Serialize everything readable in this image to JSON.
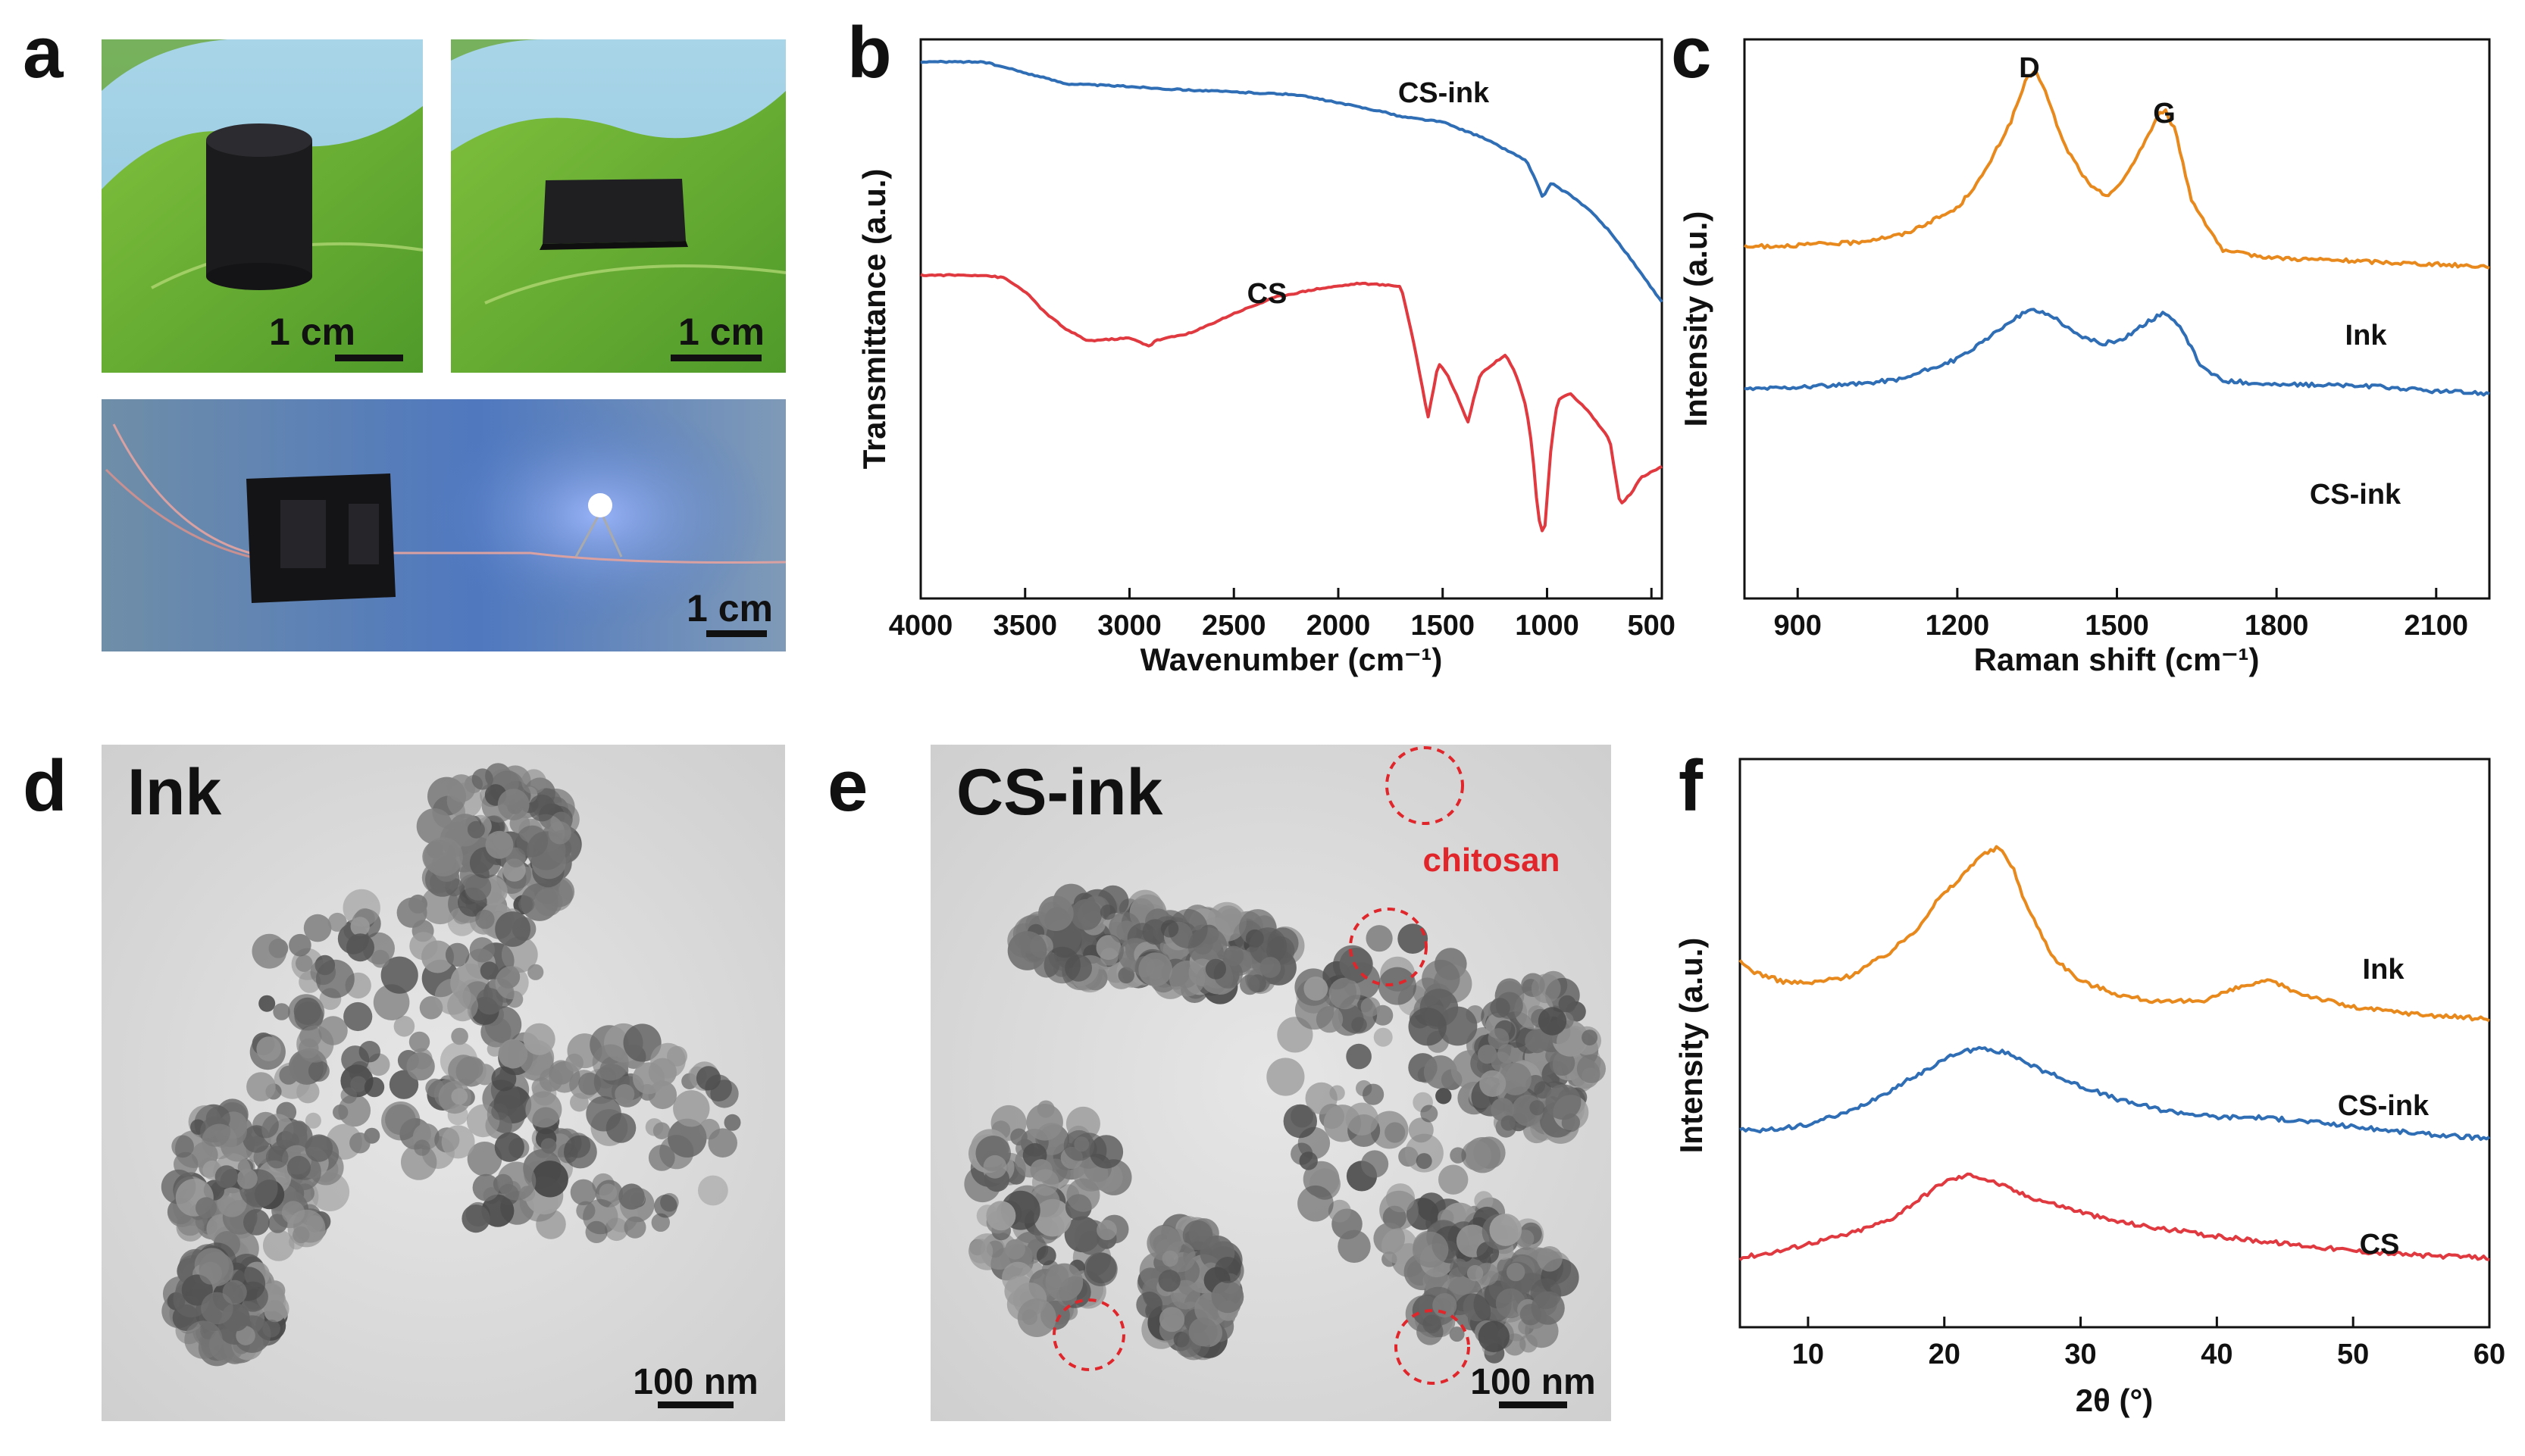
{
  "panels": {
    "a": {
      "label": "a",
      "photos": [
        {
          "name": "cylinder-photo",
          "scale_text": "1 cm"
        },
        {
          "name": "film-photo",
          "scale_text": "1 cm"
        },
        {
          "name": "led-circuit-photo",
          "scale_text": "1 cm"
        }
      ]
    },
    "d": {
      "label": "d",
      "title": "Ink",
      "scale_text": "100 nm"
    },
    "e": {
      "label": "e",
      "title": "CS-ink",
      "scale_text": "100 nm",
      "annotation": "chitosan"
    }
  },
  "colors": {
    "orange": "#e8891d",
    "blue": "#2f6db5",
    "red": "#e0393f"
  },
  "chart_data": [
    {
      "panel": "b",
      "label": "b",
      "type": "line",
      "title": "",
      "xlabel": "Wavenumber (cm⁻¹)",
      "ylabel": "Transmittance (a.u.)",
      "xlim": [
        4000,
        450
      ],
      "x_inverted": true,
      "ylim": [
        0,
        100
      ],
      "xticks": [
        4000,
        3500,
        3000,
        2500,
        2000,
        1500,
        1000,
        500
      ],
      "xtick_labels": [
        "4000",
        "3500",
        "3000",
        "2500",
        "2000",
        "1500",
        "1000",
        "500"
      ],
      "series": [
        {
          "name": "CS-ink",
          "color": "#2f6db5",
          "x": [
            4000,
            3700,
            3500,
            3300,
            3000,
            2800,
            2500,
            2200,
            2000,
            1800,
            1700,
            1500,
            1300,
            1200,
            1100,
            1050,
            1020,
            980,
            950,
            900,
            800,
            700,
            600,
            450
          ],
          "y": [
            97,
            97,
            95,
            93,
            92.5,
            92,
            91.5,
            91,
            89.5,
            88,
            87,
            86,
            83,
            81,
            79,
            75,
            72,
            75,
            74,
            73,
            70,
            66,
            61,
            53
          ]
        },
        {
          "name": "CS",
          "color": "#e0393f",
          "x": [
            4000,
            3700,
            3600,
            3500,
            3400,
            3300,
            3200,
            3000,
            2900,
            2880,
            2700,
            2500,
            2300,
            2100,
            1900,
            1700,
            1640,
            1600,
            1570,
            1520,
            1480,
            1420,
            1380,
            1320,
            1250,
            1200,
            1150,
            1100,
            1070,
            1050,
            1030,
            1010,
            980,
            950,
            890,
            800,
            700,
            650,
            600,
            550,
            500,
            450
          ],
          "y": [
            58,
            58,
            57.5,
            55,
            51,
            48,
            46,
            46.5,
            45,
            46,
            47.5,
            51,
            54,
            55.5,
            56.5,
            56,
            46,
            38,
            32,
            42,
            40,
            35,
            31,
            40,
            42,
            43.5,
            40,
            34,
            26,
            17,
            11,
            12,
            27,
            35,
            36.5,
            33,
            28,
            16,
            18,
            21,
            22,
            23
          ]
        }
      ]
    },
    {
      "panel": "c",
      "label": "c",
      "type": "line",
      "title": "",
      "xlabel": "Raman shift (cm⁻¹)",
      "ylabel": "Intensity (a.u.)",
      "xlim": [
        800,
        2200
      ],
      "ylim": [
        0,
        100
      ],
      "xticks": [
        900,
        1200,
        1500,
        1800,
        2100
      ],
      "xtick_labels": [
        "900",
        "1200",
        "1500",
        "1800",
        "2100"
      ],
      "peak_labels": [
        {
          "text": "D",
          "x": 1345
        },
        {
          "text": "G",
          "x": 1590
        }
      ],
      "series": [
        {
          "name": "Ink",
          "color": "#e8891d",
          "x": [
            800,
            900,
            1000,
            1100,
            1200,
            1250,
            1300,
            1330,
            1345,
            1360,
            1400,
            1450,
            1480,
            1510,
            1550,
            1580,
            1590,
            1610,
            1640,
            1700,
            1800,
            1900,
            2000,
            2100,
            2200
          ],
          "y": [
            57,
            57.5,
            58,
            60,
            66,
            74,
            86,
            96,
            98,
            95,
            81,
            71,
            69,
            72,
            81,
            88,
            89,
            84,
            68,
            56,
            54.5,
            54,
            53.5,
            53,
            52.5
          ]
        },
        {
          "name": "CS-ink",
          "color": "#2f6db5",
          "x": [
            800,
            900,
            1000,
            1100,
            1200,
            1250,
            1300,
            1340,
            1380,
            1420,
            1470,
            1510,
            1550,
            1590,
            1620,
            1660,
            1700,
            1800,
            1900,
            2000,
            2100,
            2200
          ],
          "y": [
            24,
            24.5,
            25,
            26.5,
            31,
            35,
            40,
            42.5,
            41,
            37,
            34.5,
            35.5,
            39,
            42,
            38,
            29,
            26,
            25,
            25,
            24.5,
            23.5,
            23
          ]
        }
      ]
    },
    {
      "panel": "f",
      "label": "f",
      "type": "line",
      "title": "",
      "xlabel": "2θ (°)",
      "ylabel": "Intensity (a.u.)",
      "xlim": [
        5,
        60
      ],
      "ylim": [
        0,
        100
      ],
      "xticks": [
        10,
        20,
        30,
        40,
        50,
        60
      ],
      "xtick_labels": [
        "10",
        "20",
        "30",
        "40",
        "50",
        "60"
      ],
      "series": [
        {
          "name": "Ink",
          "color": "#e8891d",
          "x": [
            5,
            6,
            8,
            10,
            13,
            16,
            18,
            19.5,
            21,
            22.5,
            24,
            25,
            26,
            28,
            30,
            33,
            36,
            39,
            42,
            44,
            46,
            50,
            55,
            60
          ],
          "y": [
            67,
            65,
            63,
            62.5,
            64,
            69,
            74,
            80,
            84,
            89,
            91,
            87,
            79,
            68,
            63,
            60,
            58.5,
            59,
            62,
            63,
            60.5,
            57.5,
            56,
            55
          ]
        },
        {
          "name": "CS-ink",
          "color": "#2f6db5",
          "x": [
            5,
            6,
            8,
            10,
            13,
            16,
            19,
            21,
            23,
            25,
            27,
            30,
            33,
            36,
            40,
            43,
            47,
            50,
            55,
            60
          ],
          "y": [
            32,
            31.5,
            32,
            33,
            35.5,
            40,
            45,
            48,
            49,
            47.5,
            44.5,
            41,
            38,
            36,
            34.5,
            34.5,
            33.5,
            32.5,
            31,
            30
          ]
        },
        {
          "name": "CS",
          "color": "#e0393f",
          "x": [
            5,
            6,
            8,
            10,
            13,
            16,
            18,
            20,
            22,
            24,
            26,
            29,
            32,
            35,
            40,
            45,
            50,
            55,
            60
          ],
          "y": [
            5,
            5.5,
            6.5,
            8,
            10,
            13,
            17,
            21,
            22.5,
            20.5,
            18,
            15.5,
            13,
            11.5,
            9.5,
            8,
            6.5,
            5.5,
            5
          ]
        }
      ]
    }
  ]
}
